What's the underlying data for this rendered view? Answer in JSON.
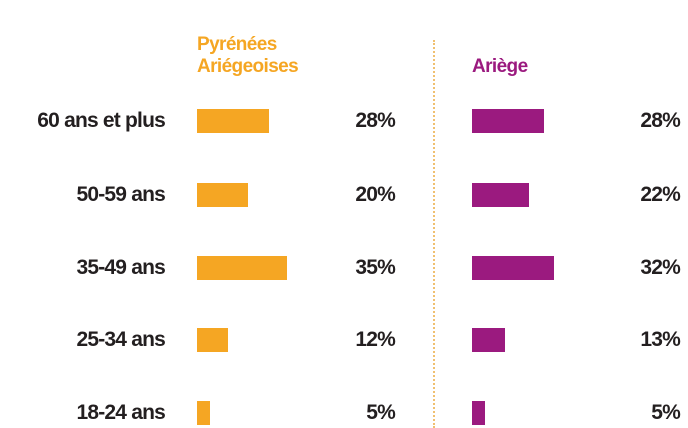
{
  "chart_data": {
    "type": "bar",
    "categories": [
      "60 ans et plus",
      "50-59 ans",
      "35-49 ans",
      "25-34 ans",
      "18-24 ans"
    ],
    "series": [
      {
        "name": "Pyrénées Ariégeoises",
        "color": "#f5a623",
        "values": [
          28,
          20,
          35,
          12,
          5
        ],
        "value_labels": [
          "28%",
          "20%",
          "35%",
          "12%",
          "5%"
        ]
      },
      {
        "name": "Ariège",
        "color": "#9b1a7f",
        "values": [
          28,
          22,
          32,
          13,
          5
        ],
        "value_labels": [
          "28%",
          "22%",
          "32%",
          "13%",
          "5%"
        ]
      }
    ]
  }
}
